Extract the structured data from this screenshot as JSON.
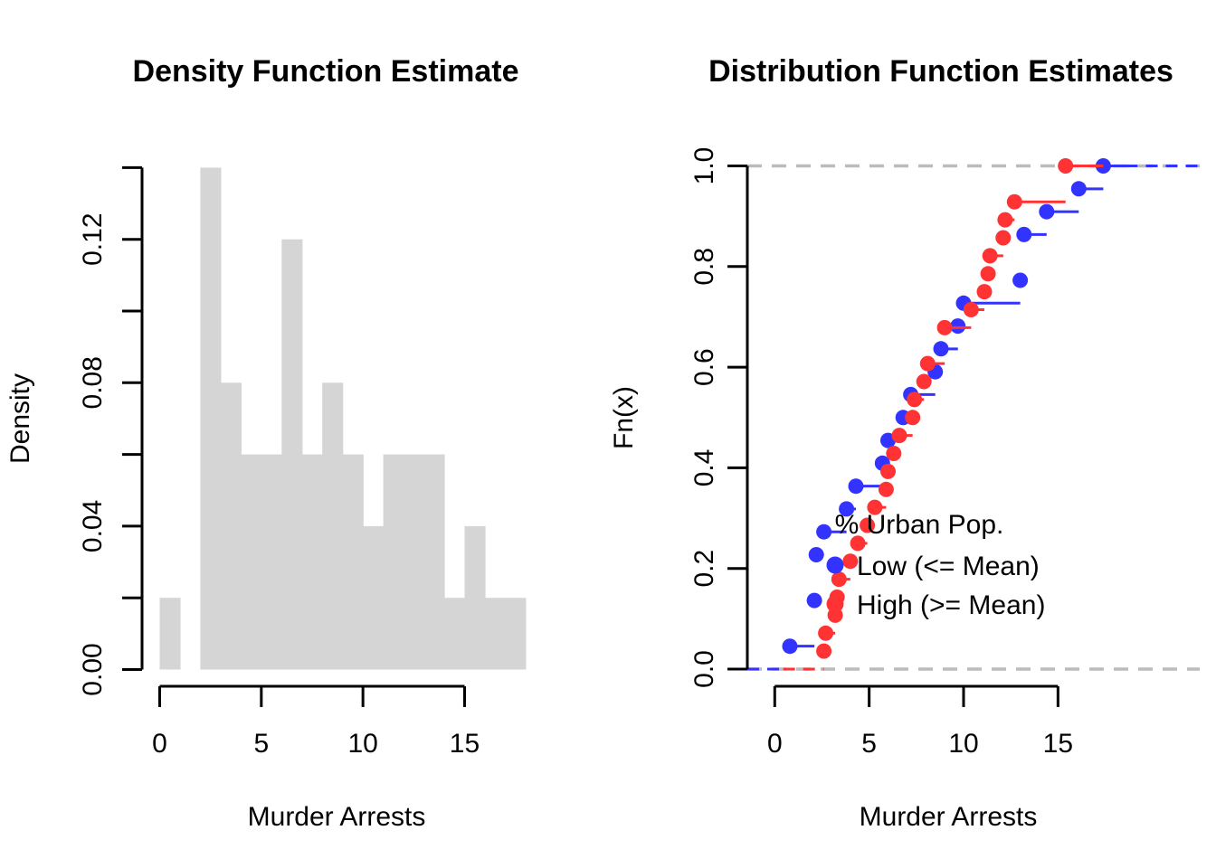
{
  "figure": {
    "left_plot": {
      "title": "Density Function Estimate",
      "xlabel": "Murder Arrests",
      "ylabel": "Density",
      "x_tick_labels": [
        "0",
        "5",
        "10",
        "15"
      ],
      "y_tick_labels": [
        "0.00",
        "",
        "0.04",
        "",
        "0.08",
        "",
        "0.12",
        ""
      ]
    },
    "right_plot": {
      "title": "Distribution Function Estimates",
      "xlabel": "Murder Arrests",
      "ylabel": "Fn(x)",
      "x_tick_labels": [
        "0",
        "5",
        "10",
        "15"
      ],
      "y_tick_labels": [
        "0.0",
        "0.2",
        "0.4",
        "0.6",
        "0.8",
        "1.0"
      ],
      "legend": {
        "title": "% Urban Pop.",
        "items": [
          {
            "label": "Low (<= Mean)",
            "color": "#3333FF"
          },
          {
            "label": "High (>= Mean)",
            "color": "#FF3333"
          }
        ]
      }
    },
    "colors": {
      "bar_fill": "#D5D5D5",
      "blue": "#3333FF",
      "red": "#FF3333",
      "reference_line": "#BBBBBB",
      "axis": "#000000"
    }
  },
  "chart_data": [
    {
      "type": "bar",
      "subtype": "histogram",
      "title": "Density Function Estimate",
      "xlabel": "Murder Arrests",
      "ylabel": "Density",
      "bin_edges": [
        0,
        1,
        2,
        3,
        4,
        5,
        6,
        7,
        8,
        9,
        10,
        11,
        12,
        13,
        14,
        15,
        16,
        17,
        18
      ],
      "densities": [
        0.02,
        0,
        0.14,
        0.08,
        0.06,
        0.06,
        0.12,
        0.06,
        0.08,
        0.06,
        0.04,
        0.06,
        0.06,
        0.06,
        0.02,
        0.04,
        0.02,
        0.02
      ],
      "counts": [
        1,
        0,
        7,
        4,
        3,
        3,
        6,
        3,
        4,
        3,
        2,
        3,
        3,
        3,
        1,
        2,
        1,
        1
      ],
      "x_ticks": [
        0,
        5,
        10,
        15
      ],
      "y_ticks": [
        0,
        0.02,
        0.04,
        0.06,
        0.08,
        0.1,
        0.12,
        0.14
      ],
      "xlim": [
        0,
        18
      ],
      "ylim": [
        0,
        0.14
      ],
      "grid": false
    },
    {
      "type": "line",
      "subtype": "ecdf-step",
      "title": "Distribution Function Estimates",
      "xlabel": "Murder Arrests",
      "ylabel": "Fn(x)",
      "x_ticks": [
        0,
        5,
        10,
        15
      ],
      "y_ticks": [
        0,
        0.2,
        0.4,
        0.6,
        0.8,
        1.0
      ],
      "ylim": [
        0,
        1
      ],
      "grid": false,
      "legend_position": "right-center",
      "reference_lines_y": [
        0,
        1
      ],
      "series": [
        {
          "name": "Low (<= Mean)",
          "color": "#3333FF",
          "x": [
            0.8,
            2.1,
            2.2,
            2.6,
            3.8,
            4.3,
            5.7,
            6.0,
            6.8,
            7.2,
            8.5,
            8.8,
            9.7,
            10.0,
            13.0,
            13.2,
            14.4,
            16.1,
            17.4
          ],
          "F": [
            0.0455,
            0.1364,
            0.2273,
            0.2727,
            0.3182,
            0.3636,
            0.4091,
            0.4545,
            0.5,
            0.5455,
            0.5909,
            0.6364,
            0.6818,
            0.7273,
            0.7727,
            0.8636,
            0.9091,
            0.9545,
            1.0
          ]
        },
        {
          "name": "High (>= Mean)",
          "color": "#FF3333",
          "x": [
            2.6,
            2.7,
            3.2,
            3.3,
            3.4,
            4.0,
            4.4,
            4.9,
            5.3,
            5.9,
            6.0,
            6.3,
            6.6,
            7.3,
            7.4,
            7.9,
            8.1,
            9.0,
            10.4,
            11.1,
            11.3,
            11.4,
            12.1,
            12.2,
            12.7,
            15.4
          ],
          "F": [
            0.0357,
            0.0714,
            0.1071,
            0.1429,
            0.1786,
            0.2143,
            0.25,
            0.2857,
            0.3214,
            0.3571,
            0.3929,
            0.4286,
            0.4643,
            0.5,
            0.5357,
            0.5714,
            0.6071,
            0.6786,
            0.7143,
            0.75,
            0.7857,
            0.8214,
            0.8571,
            0.8929,
            0.9286,
            1.0
          ]
        }
      ]
    }
  ]
}
